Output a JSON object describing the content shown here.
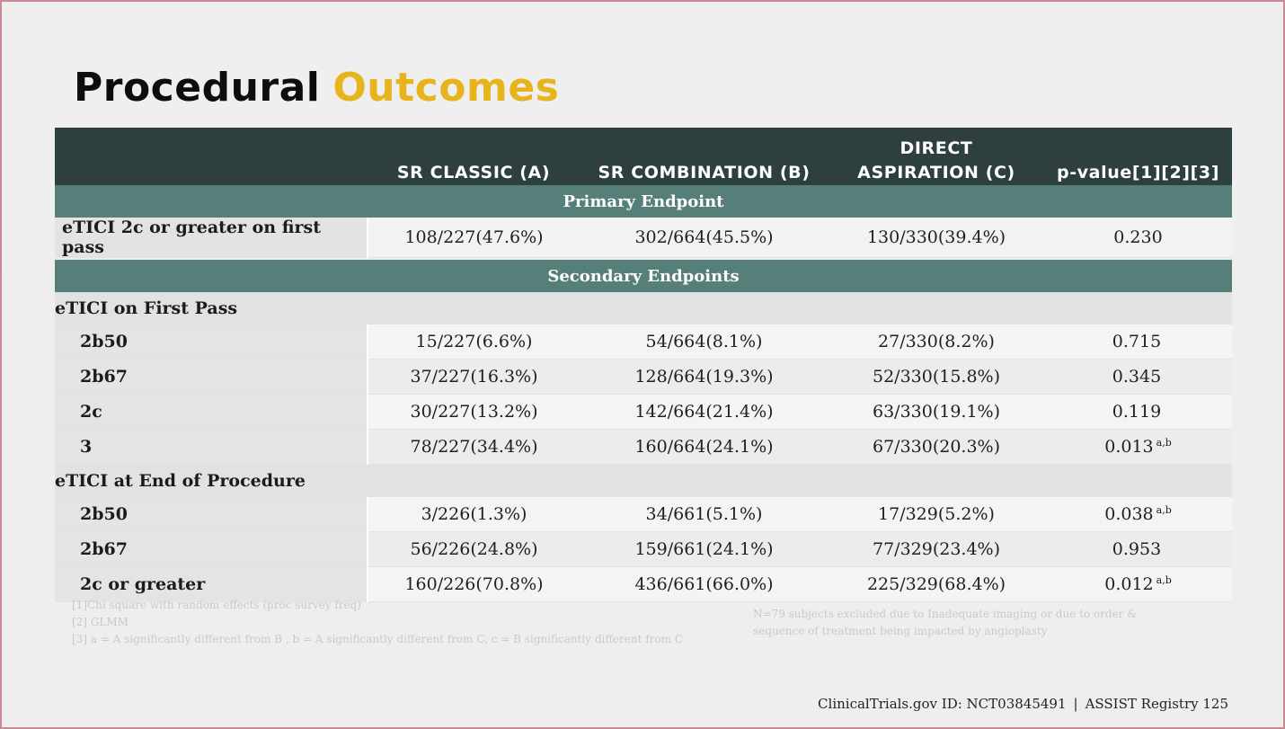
{
  "title": {
    "part1": "Procedural",
    "part2": "Outcomes"
  },
  "colors": {
    "header_bg": "#2e403d",
    "band_bg": "#567f7a",
    "accent": "#e8b41d"
  },
  "table": {
    "columns": [
      "",
      "SR CLASSIC (A)",
      "SR COMBINATION (B)",
      "DIRECT ASPIRATION (C)",
      "p-value[1][2][3]"
    ],
    "primary_band": "Primary Endpoint",
    "primary_row": {
      "label": "eTICI 2c or greater on first pass",
      "a": "108/227(47.6%)",
      "b": "302/664(45.5%)",
      "c": "130/330(39.4%)",
      "p": "0.230"
    },
    "secondary_band": "Secondary Endpoints",
    "first_pass": {
      "heading": "eTICI on First Pass",
      "rows": [
        {
          "label": "2b50",
          "a": "15/227(6.6%)",
          "b": "54/664(8.1%)",
          "c": "27/330(8.2%)",
          "p": "0.715",
          "sup": ""
        },
        {
          "label": "2b67",
          "a": "37/227(16.3%)",
          "b": "128/664(19.3%)",
          "c": "52/330(15.8%)",
          "p": "0.345",
          "sup": ""
        },
        {
          "label": "2c",
          "a": "30/227(13.2%)",
          "b": "142/664(21.4%)",
          "c": "63/330(19.1%)",
          "p": "0.119",
          "sup": ""
        },
        {
          "label": "3",
          "a": "78/227(34.4%)",
          "b": "160/664(24.1%)",
          "c": "67/330(20.3%)",
          "p": "0.013",
          "sup": "a,b"
        }
      ]
    },
    "end_procedure": {
      "heading": "eTICI at End of Procedure",
      "rows": [
        {
          "label": "2b50",
          "a": "3/226(1.3%)",
          "b": "34/661(5.1%)",
          "c": "17/329(5.2%)",
          "p": "0.038",
          "sup": "a,b"
        },
        {
          "label": "2b67",
          "a": "56/226(24.8%)",
          "b": "159/661(24.1%)",
          "c": "77/329(23.4%)",
          "p": "0.953",
          "sup": ""
        },
        {
          "label": "2c or greater",
          "a": "160/226(70.8%)",
          "b": "436/661(66.0%)",
          "c": "225/329(68.4%)",
          "p": "0.012",
          "sup": "a,b"
        }
      ]
    }
  },
  "footnotes": [
    "[1]Chi square with random effects (proc survey freq)",
    "[2] GLMM",
    "[3] a = A significantly different from B , b = A significantly different from C, c = B significantly different from C"
  ],
  "side_note": "N=79 subjects excluded due to Inadequate imaging or due to order & sequence of treatment being impacted by angioplasty",
  "footer": {
    "trial_id": "ClinicalTrials.gov ID: NCT03845491",
    "separator": "|",
    "registry": "ASSIST Registry 125"
  }
}
